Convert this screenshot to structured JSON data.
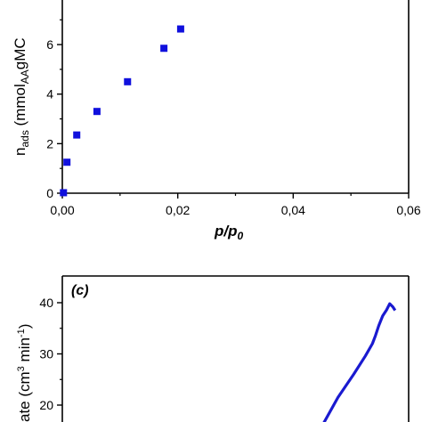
{
  "chart_data": [
    {
      "type": "scatter",
      "panel": "",
      "xlabel": "p/p0",
      "ylabel": "nads (mmolAAgMC",
      "xlim": [
        0,
        0.06
      ],
      "ylim": [
        0,
        7.8
      ],
      "x_ticks": [
        "0,00",
        "0,02",
        "0,04",
        "0,06"
      ],
      "y_ticks": [
        "0",
        "2",
        "4",
        "6"
      ],
      "marker_color": "#1010dd",
      "series": [
        {
          "points": [
            {
              "x": 0.0002,
              "y": 0.02
            },
            {
              "x": 0.0008,
              "y": 1.25
            },
            {
              "x": 0.0025,
              "y": 2.35
            },
            {
              "x": 0.006,
              "y": 3.3
            },
            {
              "x": 0.0113,
              "y": 4.5
            },
            {
              "x": 0.0176,
              "y": 5.85
            },
            {
              "x": 0.0205,
              "y": 6.63
            }
          ]
        }
      ]
    },
    {
      "type": "line",
      "panel": "(c)",
      "ylabel": "ate (cm3 min-1)",
      "ylim": [
        16,
        43
      ],
      "y_ticks": [
        "20",
        "30",
        "40"
      ],
      "line_color": "#1a1ad0",
      "series": [
        {
          "points": [
            {
              "x": 0.0,
              "y": 16.0
            },
            {
              "x": 0.2,
              "y": 21.5
            },
            {
              "x": 0.4,
              "y": 26.0
            },
            {
              "x": 0.55,
              "y": 29.6
            },
            {
              "x": 0.64,
              "y": 32.0
            },
            {
              "x": 0.68,
              "y": 33.6
            },
            {
              "x": 0.72,
              "y": 35.5
            },
            {
              "x": 0.77,
              "y": 37.4
            },
            {
              "x": 0.82,
              "y": 38.6
            },
            {
              "x": 0.86,
              "y": 39.8
            },
            {
              "x": 0.9,
              "y": 39.2
            },
            {
              "x": 0.93,
              "y": 38.5
            }
          ]
        }
      ]
    }
  ],
  "labels": {
    "top_x_title": "p/p",
    "top_x_title_sub": "0",
    "top_y_title_main": "n",
    "top_y_title_sub1": "ads",
    "top_y_title_mid": " (mmol",
    "top_y_title_sub2": "AA",
    "top_y_title_end": "gMC",
    "bottom_y_title_main": "ate (cm",
    "bottom_y_title_sup1": "3",
    "bottom_y_title_mid": " min",
    "bottom_y_title_sup2": "-1",
    "bottom_y_title_end": ")",
    "panel_c": "(c)"
  }
}
